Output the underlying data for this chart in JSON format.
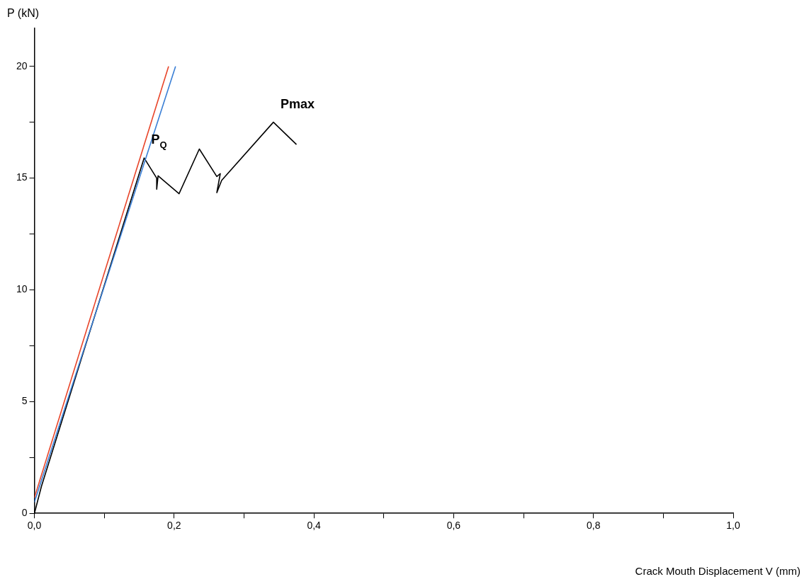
{
  "chart_data": {
    "type": "line",
    "xlabel": "Crack Mouth Displacement V (mm)",
    "ylabel": "P (kN)",
    "xlim": [
      0,
      1.0
    ],
    "ylim": [
      0,
      21.7
    ],
    "xticks": [
      {
        "value": 0,
        "label": "0,0"
      },
      {
        "value": 0.1,
        "label": null
      },
      {
        "value": 0.2,
        "label": "0,2"
      },
      {
        "value": 0.3,
        "label": null
      },
      {
        "value": 0.4,
        "label": "0,4"
      },
      {
        "value": 0.5,
        "label": null
      },
      {
        "value": 0.6,
        "label": "0,6"
      },
      {
        "value": 0.7,
        "label": null
      },
      {
        "value": 0.8,
        "label": "0,8"
      },
      {
        "value": 0.9,
        "label": null
      },
      {
        "value": 1.0,
        "label": "1,0"
      }
    ],
    "yticks": [
      0,
      {
        "value": 2.5,
        "label": null
      },
      5,
      {
        "value": 7.5,
        "label": null
      },
      10,
      {
        "value": 12.5,
        "label": null
      },
      15,
      {
        "value": 17.5,
        "label": null
      },
      20
    ],
    "grid": false,
    "legend": false,
    "marker": "none",
    "line_style": "solid",
    "series": [
      {
        "color": "#e8452a",
        "x": [
          0,
          0.192
        ],
        "values": [
          0.7,
          20
        ]
      },
      {
        "color": "#3a7fd5",
        "x": [
          0,
          0.202
        ],
        "values": [
          0.5,
          20
        ]
      },
      {
        "color": "#000000",
        "x": [
          0,
          0.01,
          0.157,
          0.175,
          0.175,
          0.177,
          0.207,
          0.236,
          0.261,
          0.266,
          0.261,
          0.268,
          0.342,
          0.375
        ],
        "values": [
          0,
          1.2,
          15.9,
          15.0,
          14.5,
          15.1,
          14.3,
          16.3,
          15.07,
          15.2,
          14.35,
          14.9,
          17.5,
          16.5
        ]
      }
    ],
    "annotations": [
      {
        "text": "P$_{Q}$",
        "x": 0.157,
        "y": 15.9
      },
      {
        "text": "Pmax",
        "x": 0.342,
        "y": 17.5
      }
    ]
  }
}
